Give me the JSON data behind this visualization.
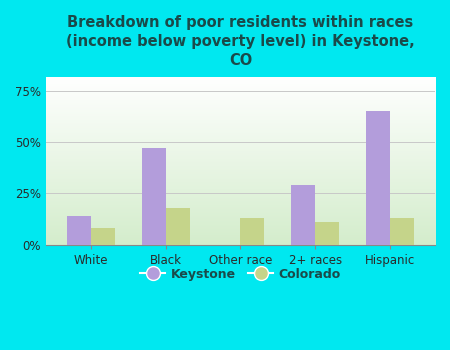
{
  "categories": [
    "White",
    "Black",
    "Other race",
    "2+ races",
    "Hispanic"
  ],
  "keystone_values": [
    14,
    47,
    0,
    29,
    65
  ],
  "colorado_values": [
    8,
    18,
    13,
    11,
    13
  ],
  "keystone_color": "#b39ddb",
  "colorado_color": "#c5d48a",
  "title": "Breakdown of poor residents within races\n(income below poverty level) in Keystone,\nCO",
  "title_fontsize": 10.5,
  "title_fontweight": "bold",
  "title_color": "#1a4a4a",
  "ylim": [
    0,
    82
  ],
  "yticks": [
    0,
    25,
    50,
    75
  ],
  "yticklabels": [
    "0%",
    "25%",
    "50%",
    "75%"
  ],
  "background_color": "#00e8f0",
  "plot_bg_top": "#ffffff",
  "plot_bg_bottom": "#d4edcc",
  "legend_keystone": "Keystone",
  "legend_colorado": "Colorado",
  "bar_width": 0.32,
  "grid_color": "#c8c8c8",
  "tick_label_color": "#2a2a2a",
  "tick_label_fontsize": 8.5
}
